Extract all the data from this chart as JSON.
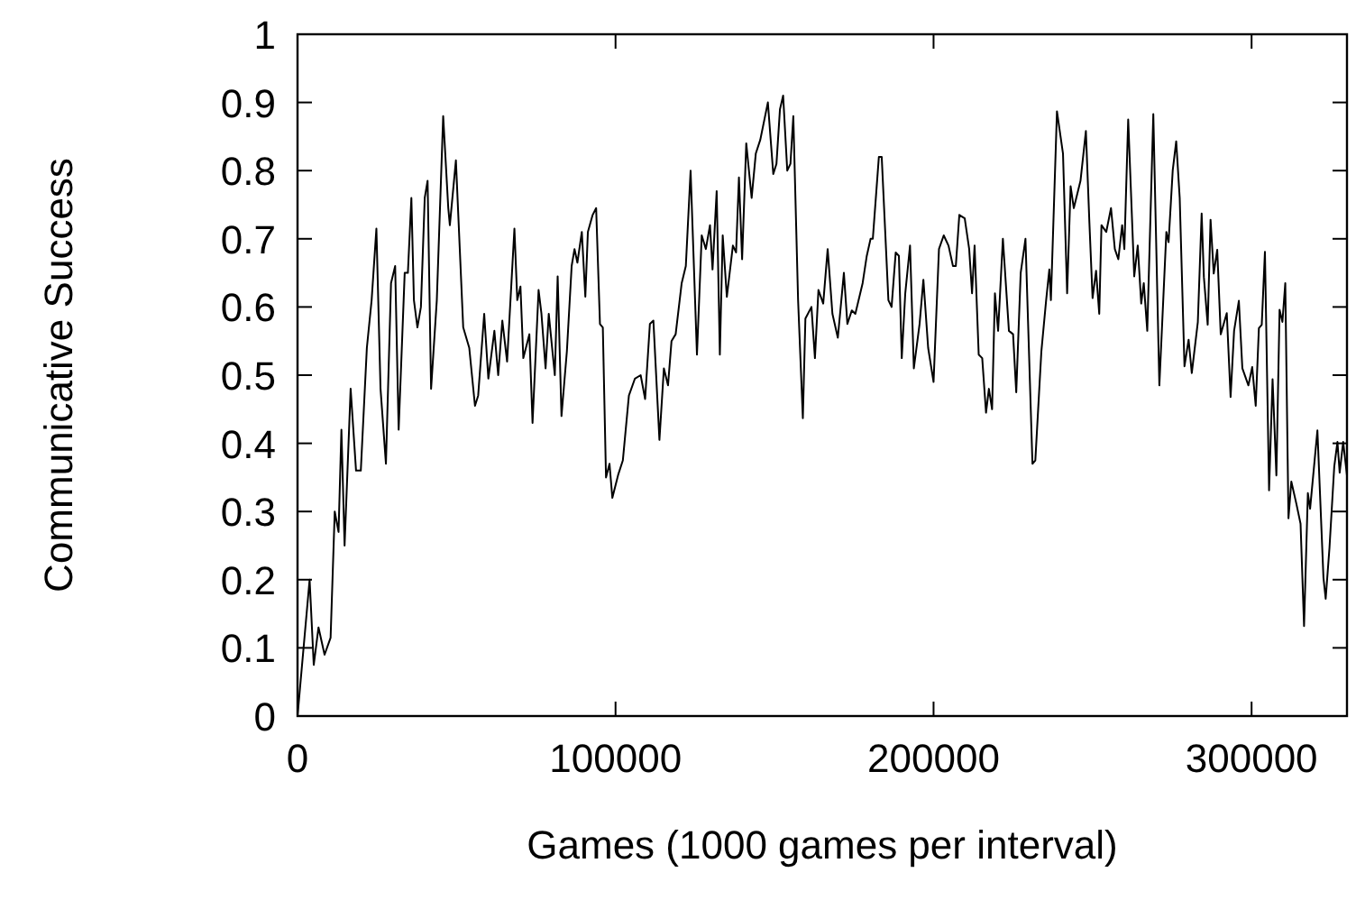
{
  "chart_data": {
    "type": "line",
    "xlabel": "Games (1000 games per interval)",
    "ylabel": "Communicative Success",
    "xlim": [
      0,
      330000
    ],
    "ylim": [
      0,
      1
    ],
    "xticks": [
      0,
      100000,
      200000,
      300000
    ],
    "yticks": [
      0,
      0.1,
      0.2,
      0.3,
      0.4,
      0.5,
      0.6,
      0.7,
      0.8,
      0.9,
      1
    ],
    "grid": false,
    "marker": "none",
    "line_style": "solid",
    "series": [
      {
        "color": "#000000",
        "x": [
          0,
          3800,
          5100,
          6600,
          8500,
          10400,
          11700,
          12900,
          13800,
          14800,
          16700,
          18400,
          19900,
          21800,
          23300,
          24800,
          26100,
          27800,
          29400,
          30700,
          31800,
          33700,
          34700,
          35800,
          36600,
          37700,
          38800,
          40000,
          40900,
          42000,
          43800,
          45800,
          47400,
          47900,
          49800,
          52100,
          54000,
          55800,
          56800,
          58700,
          60000,
          61900,
          63100,
          64400,
          65900,
          68200,
          69100,
          70100,
          71000,
          72900,
          73900,
          75800,
          76700,
          78000,
          79000,
          80900,
          81800,
          83000,
          84700,
          86200,
          87100,
          88000,
          89400,
          90500,
          91300,
          92800,
          93900,
          95100,
          96000,
          97000,
          98100,
          99000,
          100900,
          102300,
          104200,
          106100,
          107900,
          109300,
          110800,
          111900,
          113800,
          115200,
          116500,
          117600,
          118900,
          120800,
          122100,
          123600,
          125600,
          127100,
          128400,
          129700,
          130500,
          131800,
          132800,
          133700,
          135000,
          136900,
          137900,
          138800,
          139800,
          141100,
          142800,
          144100,
          145500,
          147900,
          149600,
          150600,
          151700,
          152700,
          154000,
          155000,
          155900,
          157400,
          158900,
          159700,
          161600,
          162700,
          163800,
          165300,
          166700,
          168200,
          169900,
          171800,
          172900,
          174300,
          175400,
          177700,
          179000,
          180200,
          180900,
          182800,
          183700,
          185800,
          186800,
          188100,
          189100,
          190000,
          191100,
          192600,
          193800,
          195600,
          196800,
          198300,
          200000,
          201700,
          203200,
          204700,
          206100,
          207000,
          208100,
          209800,
          211200,
          212100,
          212900,
          214200,
          215300,
          216500,
          217400,
          218400,
          219300,
          220300,
          221800,
          223700,
          225000,
          226000,
          227400,
          228900,
          229700,
          231100,
          232000,
          233900,
          235400,
          236400,
          236900,
          238800,
          240700,
          242000,
          243100,
          244100,
          246200,
          247900,
          249000,
          250000,
          251100,
          252100,
          252800,
          254300,
          255800,
          257000,
          258100,
          259300,
          260000,
          261200,
          263100,
          264200,
          265300,
          266100,
          267200,
          269100,
          271000,
          273200,
          273900,
          275200,
          276300,
          277400,
          278900,
          280200,
          281200,
          283100,
          284300,
          285000,
          286200,
          287100,
          288100,
          289200,
          290300,
          292200,
          293400,
          294500,
          296000,
          297100,
          299000,
          300200,
          301300,
          302300,
          303200,
          304200,
          305500,
          306600,
          307800,
          308800,
          309700,
          310600,
          311600,
          312500,
          314100,
          315400,
          316500,
          317700,
          318400,
          320700,
          322600,
          323300,
          324500,
          326000,
          327000,
          327700,
          328800,
          330000
        ],
        "values": [
          0,
          0.2,
          0.075,
          0.13,
          0.09,
          0.115,
          0.3,
          0.27,
          0.42,
          0.25,
          0.48,
          0.36,
          0.36,
          0.54,
          0.61,
          0.715,
          0.48,
          0.37,
          0.635,
          0.66,
          0.42,
          0.65,
          0.65,
          0.76,
          0.61,
          0.57,
          0.6,
          0.76,
          0.785,
          0.48,
          0.61,
          0.88,
          0.745,
          0.72,
          0.815,
          0.57,
          0.54,
          0.455,
          0.47,
          0.59,
          0.495,
          0.565,
          0.5,
          0.58,
          0.52,
          0.715,
          0.61,
          0.63,
          0.525,
          0.56,
          0.43,
          0.625,
          0.59,
          0.51,
          0.59,
          0.5,
          0.645,
          0.44,
          0.535,
          0.66,
          0.685,
          0.665,
          0.71,
          0.615,
          0.71,
          0.735,
          0.745,
          0.575,
          0.57,
          0.35,
          0.37,
          0.32,
          0.355,
          0.375,
          0.47,
          0.495,
          0.5,
          0.465,
          0.575,
          0.58,
          0.405,
          0.51,
          0.485,
          0.55,
          0.56,
          0.635,
          0.66,
          0.8,
          0.53,
          0.705,
          0.685,
          0.72,
          0.655,
          0.77,
          0.53,
          0.705,
          0.615,
          0.69,
          0.68,
          0.79,
          0.67,
          0.84,
          0.76,
          0.825,
          0.845,
          0.9,
          0.795,
          0.81,
          0.89,
          0.91,
          0.8,
          0.81,
          0.88,
          0.61,
          0.437,
          0.583,
          0.6,
          0.525,
          0.625,
          0.605,
          0.685,
          0.59,
          0.555,
          0.65,
          0.575,
          0.595,
          0.59,
          0.635,
          0.675,
          0.7,
          0.7,
          0.82,
          0.82,
          0.61,
          0.6,
          0.68,
          0.675,
          0.525,
          0.62,
          0.69,
          0.51,
          0.575,
          0.64,
          0.54,
          0.49,
          0.685,
          0.705,
          0.69,
          0.66,
          0.66,
          0.735,
          0.73,
          0.685,
          0.62,
          0.69,
          0.53,
          0.525,
          0.445,
          0.48,
          0.45,
          0.62,
          0.565,
          0.7,
          0.565,
          0.56,
          0.475,
          0.65,
          0.7,
          0.58,
          0.37,
          0.375,
          0.535,
          0.61,
          0.655,
          0.61,
          0.887,
          0.825,
          0.62,
          0.777,
          0.745,
          0.785,
          0.858,
          0.724,
          0.613,
          0.653,
          0.59,
          0.72,
          0.71,
          0.745,
          0.685,
          0.67,
          0.72,
          0.685,
          0.875,
          0.645,
          0.69,
          0.605,
          0.635,
          0.565,
          0.883,
          0.485,
          0.71,
          0.695,
          0.8,
          0.843,
          0.76,
          0.513,
          0.552,
          0.503,
          0.578,
          0.737,
          0.644,
          0.574,
          0.728,
          0.649,
          0.684,
          0.56,
          0.591,
          0.468,
          0.565,
          0.609,
          0.51,
          0.485,
          0.512,
          0.455,
          0.569,
          0.574,
          0.681,
          0.331,
          0.494,
          0.353,
          0.596,
          0.578,
          0.635,
          0.29,
          0.344,
          0.311,
          0.282,
          0.132,
          0.327,
          0.304,
          0.419,
          0.203,
          0.172,
          0.247,
          0.366,
          0.402,
          0.357,
          0.402,
          0.353
        ]
      }
    ]
  }
}
